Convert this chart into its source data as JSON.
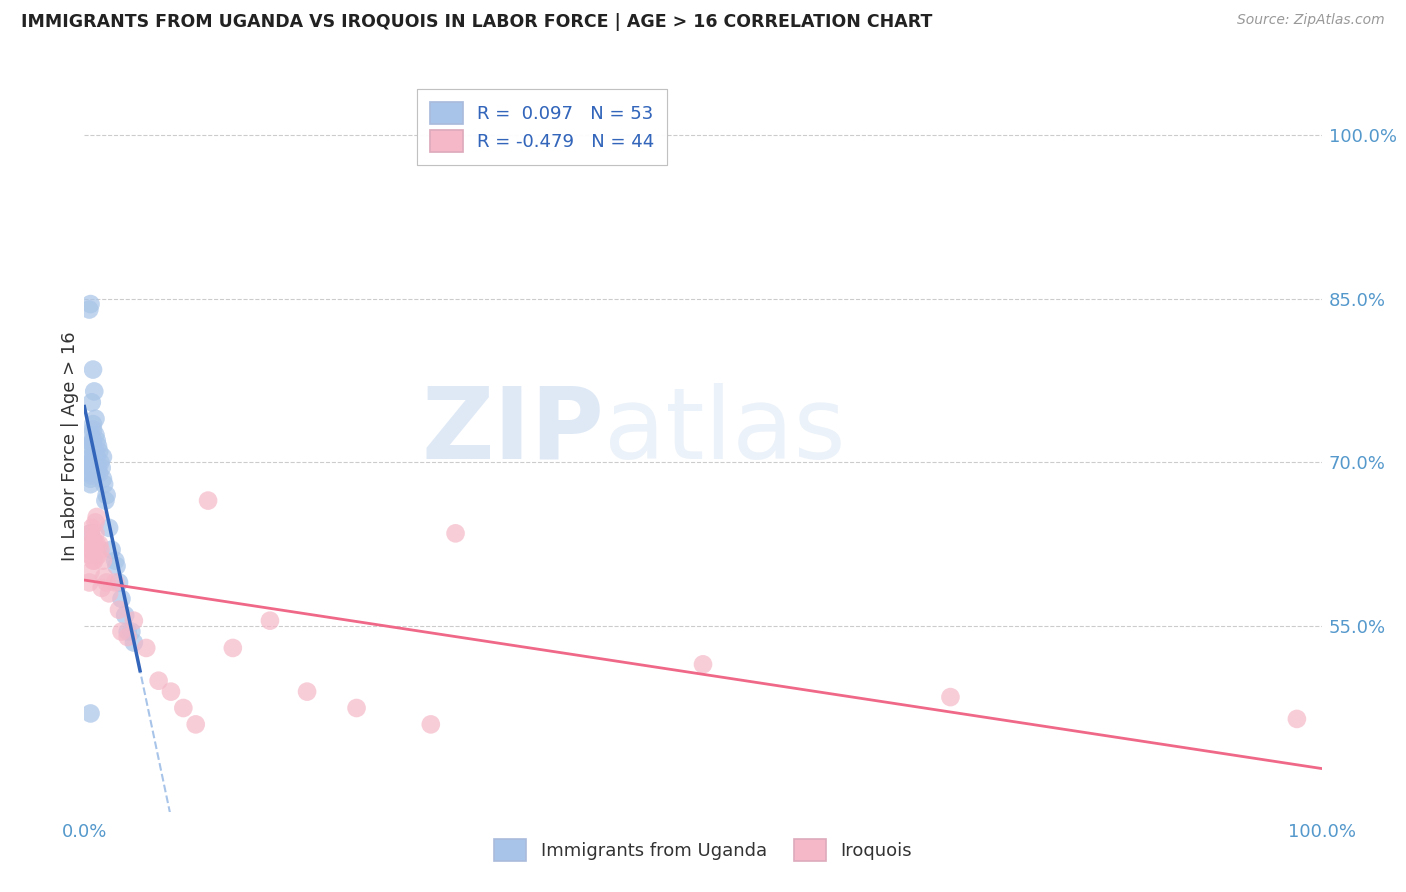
{
  "title": "IMMIGRANTS FROM UGANDA VS IROQUOIS IN LABOR FORCE | AGE > 16 CORRELATION CHART",
  "source": "Source: ZipAtlas.com",
  "ylabel": "In Labor Force | Age > 16",
  "xlim": [
    0.0,
    100.0
  ],
  "ylim": [
    38.0,
    105.0
  ],
  "y_tick_vals_right": [
    100.0,
    85.0,
    70.0,
    55.0
  ],
  "y_tick_labels_right": [
    "100.0%",
    "85.0%",
    "70.0%",
    "55.0%"
  ],
  "uganda_R": 0.097,
  "uganda_N": 53,
  "iroquois_R": -0.479,
  "iroquois_N": 44,
  "uganda_color": "#a8c4e8",
  "iroquois_color": "#f5b8c8",
  "uganda_line_color": "#3366bb",
  "iroquois_line_color": "#f06888",
  "dashed_line_color": "#a8c4e8",
  "watermark_zip": "ZIP",
  "watermark_atlas": "atlas",
  "uganda_x": [
    0.5,
    0.5,
    0.5,
    0.5,
    0.5,
    0.6,
    0.6,
    0.6,
    0.7,
    0.7,
    0.7,
    0.8,
    0.8,
    0.8,
    0.9,
    0.9,
    1.0,
    1.0,
    1.0,
    1.1,
    1.1,
    1.2,
    1.2,
    1.3,
    1.4,
    1.5,
    1.5,
    1.6,
    1.7,
    1.8,
    2.0,
    2.2,
    2.5,
    2.6,
    2.8,
    3.0,
    3.3,
    3.5,
    3.8,
    4.0,
    0.4,
    0.5,
    0.6,
    0.7,
    0.8,
    0.9,
    0.5,
    0.6,
    0.7,
    0.5,
    0.5,
    0.6,
    0.5
  ],
  "uganda_y": [
    70.0,
    69.0,
    68.5,
    68.0,
    71.5,
    70.5,
    69.5,
    68.8,
    73.0,
    72.0,
    71.5,
    71.0,
    70.5,
    69.5,
    72.5,
    71.0,
    72.0,
    70.5,
    69.0,
    71.5,
    69.5,
    71.0,
    69.0,
    70.0,
    69.5,
    70.5,
    68.5,
    68.0,
    66.5,
    67.0,
    64.0,
    62.0,
    61.0,
    60.5,
    59.0,
    57.5,
    56.0,
    54.5,
    54.5,
    53.5,
    84.0,
    84.5,
    75.5,
    78.5,
    76.5,
    74.0,
    72.5,
    71.8,
    73.5,
    47.0,
    70.5,
    69.8,
    63.5
  ],
  "iroquois_x": [
    0.4,
    0.4,
    0.5,
    0.5,
    0.5,
    0.5,
    0.6,
    0.6,
    0.7,
    0.7,
    0.8,
    0.8,
    0.9,
    0.9,
    1.0,
    1.0,
    1.1,
    1.2,
    1.3,
    1.4,
    1.5,
    1.6,
    1.8,
    2.0,
    2.5,
    2.8,
    3.0,
    3.5,
    4.0,
    5.0,
    6.0,
    7.0,
    8.0,
    9.0,
    10.0,
    12.0,
    15.0,
    18.0,
    22.0,
    28.0,
    30.0,
    50.0,
    70.0,
    98.0
  ],
  "iroquois_y": [
    62.0,
    59.0,
    63.5,
    62.5,
    61.5,
    60.0,
    64.0,
    62.0,
    63.0,
    61.0,
    62.5,
    61.0,
    64.5,
    63.5,
    65.0,
    62.5,
    61.5,
    62.5,
    62.0,
    58.5,
    61.0,
    59.5,
    59.0,
    58.0,
    59.0,
    56.5,
    54.5,
    54.0,
    55.5,
    53.0,
    50.0,
    49.0,
    47.5,
    46.0,
    66.5,
    53.0,
    55.5,
    49.0,
    47.5,
    46.0,
    63.5,
    51.5,
    48.5,
    46.5
  ]
}
